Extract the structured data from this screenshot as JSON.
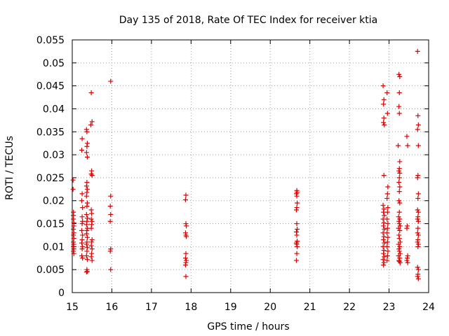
{
  "chart_data": {
    "type": "scatter",
    "title": "Day 135 of 2018, Rate Of TEC Index for receiver ktia",
    "xlabel": "GPS time / hours",
    "ylabel": "ROTI / TECUs",
    "xlim": [
      15,
      24
    ],
    "ylim": [
      0,
      0.055
    ],
    "xticks": [
      15,
      16,
      17,
      18,
      19,
      20,
      21,
      22,
      23,
      24
    ],
    "yticks": [
      0,
      0.005,
      0.01,
      0.015,
      0.02,
      0.025,
      0.03,
      0.035,
      0.04,
      0.045,
      0.05,
      0.055
    ],
    "ytick_labels": [
      "0",
      "0.005",
      "0.01",
      "0.015",
      "0.02",
      "0.025",
      "0.03",
      "0.035",
      "0.04",
      "0.045",
      "0.05",
      "0.055"
    ],
    "grid": true,
    "marker": "+",
    "color": "#dd0000",
    "series": [
      {
        "name": "ROTI",
        "points": [
          [
            15.02,
            0.0245
          ],
          [
            15.02,
            0.0225
          ],
          [
            15.03,
            0.0175
          ],
          [
            15.03,
            0.0168
          ],
          [
            15.03,
            0.016
          ],
          [
            15.04,
            0.0152
          ],
          [
            15.04,
            0.0145
          ],
          [
            15.03,
            0.0138
          ],
          [
            15.04,
            0.013
          ],
          [
            15.03,
            0.0125
          ],
          [
            15.04,
            0.0118
          ],
          [
            15.03,
            0.011
          ],
          [
            15.04,
            0.0105
          ],
          [
            15.03,
            0.01
          ],
          [
            15.04,
            0.0095
          ],
          [
            15.03,
            0.009
          ],
          [
            15.04,
            0.0085
          ],
          [
            15.25,
            0.0335
          ],
          [
            15.24,
            0.031
          ],
          [
            15.25,
            0.0215
          ],
          [
            15.24,
            0.02
          ],
          [
            15.26,
            0.0185
          ],
          [
            15.25,
            0.0165
          ],
          [
            15.26,
            0.0155
          ],
          [
            15.25,
            0.015
          ],
          [
            15.24,
            0.0135
          ],
          [
            15.26,
            0.0125
          ],
          [
            15.25,
            0.0115
          ],
          [
            15.24,
            0.0108
          ],
          [
            15.26,
            0.01
          ],
          [
            15.25,
            0.0095
          ],
          [
            15.24,
            0.008
          ],
          [
            15.26,
            0.0075
          ],
          [
            15.36,
            0.0355
          ],
          [
            15.37,
            0.035
          ],
          [
            15.38,
            0.0325
          ],
          [
            15.37,
            0.0318
          ],
          [
            15.36,
            0.0305
          ],
          [
            15.38,
            0.0295
          ],
          [
            15.37,
            0.024
          ],
          [
            15.36,
            0.0232
          ],
          [
            15.38,
            0.0225
          ],
          [
            15.37,
            0.0218
          ],
          [
            15.36,
            0.021
          ],
          [
            15.38,
            0.0195
          ],
          [
            15.37,
            0.0188
          ],
          [
            15.36,
            0.017
          ],
          [
            15.38,
            0.0162
          ],
          [
            15.37,
            0.0155
          ],
          [
            15.36,
            0.0148
          ],
          [
            15.38,
            0.014
          ],
          [
            15.37,
            0.0135
          ],
          [
            15.36,
            0.0128
          ],
          [
            15.38,
            0.012
          ],
          [
            15.37,
            0.011
          ],
          [
            15.36,
            0.0105
          ],
          [
            15.38,
            0.0098
          ],
          [
            15.37,
            0.009
          ],
          [
            15.36,
            0.008
          ],
          [
            15.38,
            0.0072
          ],
          [
            15.37,
            0.005
          ],
          [
            15.38,
            0.0046
          ],
          [
            15.36,
            0.0045
          ],
          [
            15.48,
            0.0435
          ],
          [
            15.5,
            0.0372
          ],
          [
            15.47,
            0.0365
          ],
          [
            15.49,
            0.0265
          ],
          [
            15.48,
            0.0258
          ],
          [
            15.5,
            0.0255
          ],
          [
            15.48,
            0.018
          ],
          [
            15.49,
            0.0172
          ],
          [
            15.48,
            0.016
          ],
          [
            15.5,
            0.0155
          ],
          [
            15.49,
            0.0148
          ],
          [
            15.48,
            0.014
          ],
          [
            15.5,
            0.0115
          ],
          [
            15.49,
            0.011
          ],
          [
            15.48,
            0.0102
          ],
          [
            15.5,
            0.0095
          ],
          [
            15.49,
            0.0085
          ],
          [
            15.48,
            0.0078
          ],
          [
            15.5,
            0.007
          ],
          [
            15.97,
            0.046
          ],
          [
            15.97,
            0.021
          ],
          [
            15.96,
            0.0188
          ],
          [
            15.97,
            0.017
          ],
          [
            15.96,
            0.0155
          ],
          [
            15.97,
            0.0095
          ],
          [
            15.96,
            0.009
          ],
          [
            15.97,
            0.005
          ],
          [
            17.87,
            0.0212
          ],
          [
            17.86,
            0.0202
          ],
          [
            17.87,
            0.015
          ],
          [
            17.88,
            0.0145
          ],
          [
            17.86,
            0.013
          ],
          [
            17.87,
            0.0125
          ],
          [
            17.88,
            0.0122
          ],
          [
            17.87,
            0.0085
          ],
          [
            17.86,
            0.0075
          ],
          [
            17.88,
            0.007
          ],
          [
            17.87,
            0.0065
          ],
          [
            17.86,
            0.006
          ],
          [
            17.87,
            0.0035
          ],
          [
            20.67,
            0.0222
          ],
          [
            20.68,
            0.0218
          ],
          [
            20.66,
            0.0215
          ],
          [
            20.67,
            0.021
          ],
          [
            20.68,
            0.0195
          ],
          [
            20.67,
            0.0185
          ],
          [
            20.66,
            0.018
          ],
          [
            20.67,
            0.015
          ],
          [
            20.68,
            0.0138
          ],
          [
            20.66,
            0.0132
          ],
          [
            20.67,
            0.0125
          ],
          [
            20.68,
            0.0112
          ],
          [
            20.66,
            0.0108
          ],
          [
            20.67,
            0.0105
          ],
          [
            20.68,
            0.01
          ],
          [
            20.67,
            0.0085
          ],
          [
            20.66,
            0.007
          ],
          [
            22.85,
            0.045
          ],
          [
            22.87,
            0.042
          ],
          [
            22.86,
            0.041
          ],
          [
            22.87,
            0.038
          ],
          [
            22.86,
            0.037
          ],
          [
            22.88,
            0.0365
          ],
          [
            22.87,
            0.0255
          ],
          [
            22.85,
            0.019
          ],
          [
            22.87,
            0.0182
          ],
          [
            22.86,
            0.0175
          ],
          [
            22.88,
            0.0168
          ],
          [
            22.85,
            0.016
          ],
          [
            22.87,
            0.0152
          ],
          [
            22.86,
            0.0145
          ],
          [
            22.88,
            0.0138
          ],
          [
            22.85,
            0.013
          ],
          [
            22.87,
            0.0122
          ],
          [
            22.86,
            0.0115
          ],
          [
            22.88,
            0.0108
          ],
          [
            22.85,
            0.01
          ],
          [
            22.87,
            0.0092
          ],
          [
            22.86,
            0.0085
          ],
          [
            22.88,
            0.0078
          ],
          [
            22.85,
            0.0072
          ],
          [
            22.87,
            0.0065
          ],
          [
            22.86,
            0.006
          ],
          [
            22.95,
            0.0435
          ],
          [
            22.96,
            0.039
          ],
          [
            22.97,
            0.023
          ],
          [
            22.96,
            0.0215
          ],
          [
            22.95,
            0.0205
          ],
          [
            22.97,
            0.0185
          ],
          [
            22.96,
            0.0175
          ],
          [
            22.95,
            0.016
          ],
          [
            22.97,
            0.015
          ],
          [
            22.96,
            0.014
          ],
          [
            22.95,
            0.013
          ],
          [
            22.97,
            0.012
          ],
          [
            22.96,
            0.011
          ],
          [
            22.95,
            0.01
          ],
          [
            22.97,
            0.009
          ],
          [
            22.96,
            0.008
          ],
          [
            22.95,
            0.007
          ],
          [
            23.25,
            0.0475
          ],
          [
            23.27,
            0.047
          ],
          [
            23.26,
            0.0435
          ],
          [
            23.25,
            0.0405
          ],
          [
            23.26,
            0.039
          ],
          [
            23.23,
            0.032
          ],
          [
            23.27,
            0.0285
          ],
          [
            23.26,
            0.027
          ],
          [
            23.25,
            0.0265
          ],
          [
            23.27,
            0.026
          ],
          [
            23.26,
            0.025
          ],
          [
            23.25,
            0.024
          ],
          [
            23.27,
            0.023
          ],
          [
            23.26,
            0.022
          ],
          [
            23.25,
            0.02
          ],
          [
            23.27,
            0.0195
          ],
          [
            23.26,
            0.0175
          ],
          [
            23.24,
            0.0165
          ],
          [
            23.27,
            0.016
          ],
          [
            23.25,
            0.0155
          ],
          [
            23.26,
            0.015
          ],
          [
            23.28,
            0.0145
          ],
          [
            23.24,
            0.014
          ],
          [
            23.27,
            0.0135
          ],
          [
            23.25,
            0.0125
          ],
          [
            23.26,
            0.0118
          ],
          [
            23.28,
            0.011
          ],
          [
            23.24,
            0.0105
          ],
          [
            23.27,
            0.01
          ],
          [
            23.25,
            0.0095
          ],
          [
            23.26,
            0.009
          ],
          [
            23.28,
            0.0085
          ],
          [
            23.24,
            0.008
          ],
          [
            23.27,
            0.0075
          ],
          [
            23.25,
            0.007
          ],
          [
            23.26,
            0.0068
          ],
          [
            23.28,
            0.0065
          ],
          [
            23.45,
            0.034
          ],
          [
            23.47,
            0.032
          ],
          [
            23.46,
            0.0145
          ],
          [
            23.45,
            0.014
          ],
          [
            23.47,
            0.008
          ],
          [
            23.46,
            0.0075
          ],
          [
            23.45,
            0.007
          ],
          [
            23.47,
            0.0065
          ],
          [
            23.72,
            0.0525
          ],
          [
            23.73,
            0.0385
          ],
          [
            23.74,
            0.0365
          ],
          [
            23.72,
            0.0355
          ],
          [
            23.74,
            0.032
          ],
          [
            23.73,
            0.0255
          ],
          [
            23.72,
            0.025
          ],
          [
            23.74,
            0.0215
          ],
          [
            23.73,
            0.0205
          ],
          [
            23.72,
            0.018
          ],
          [
            23.74,
            0.0175
          ],
          [
            23.73,
            0.0165
          ],
          [
            23.72,
            0.016
          ],
          [
            23.74,
            0.0155
          ],
          [
            23.73,
            0.014
          ],
          [
            23.72,
            0.013
          ],
          [
            23.74,
            0.0125
          ],
          [
            23.73,
            0.0115
          ],
          [
            23.72,
            0.011
          ],
          [
            23.74,
            0.0105
          ],
          [
            23.73,
            0.01
          ],
          [
            23.72,
            0.0055
          ],
          [
            23.74,
            0.005
          ],
          [
            23.73,
            0.004
          ],
          [
            23.72,
            0.0035
          ],
          [
            23.74,
            0.003
          ]
        ]
      }
    ]
  }
}
